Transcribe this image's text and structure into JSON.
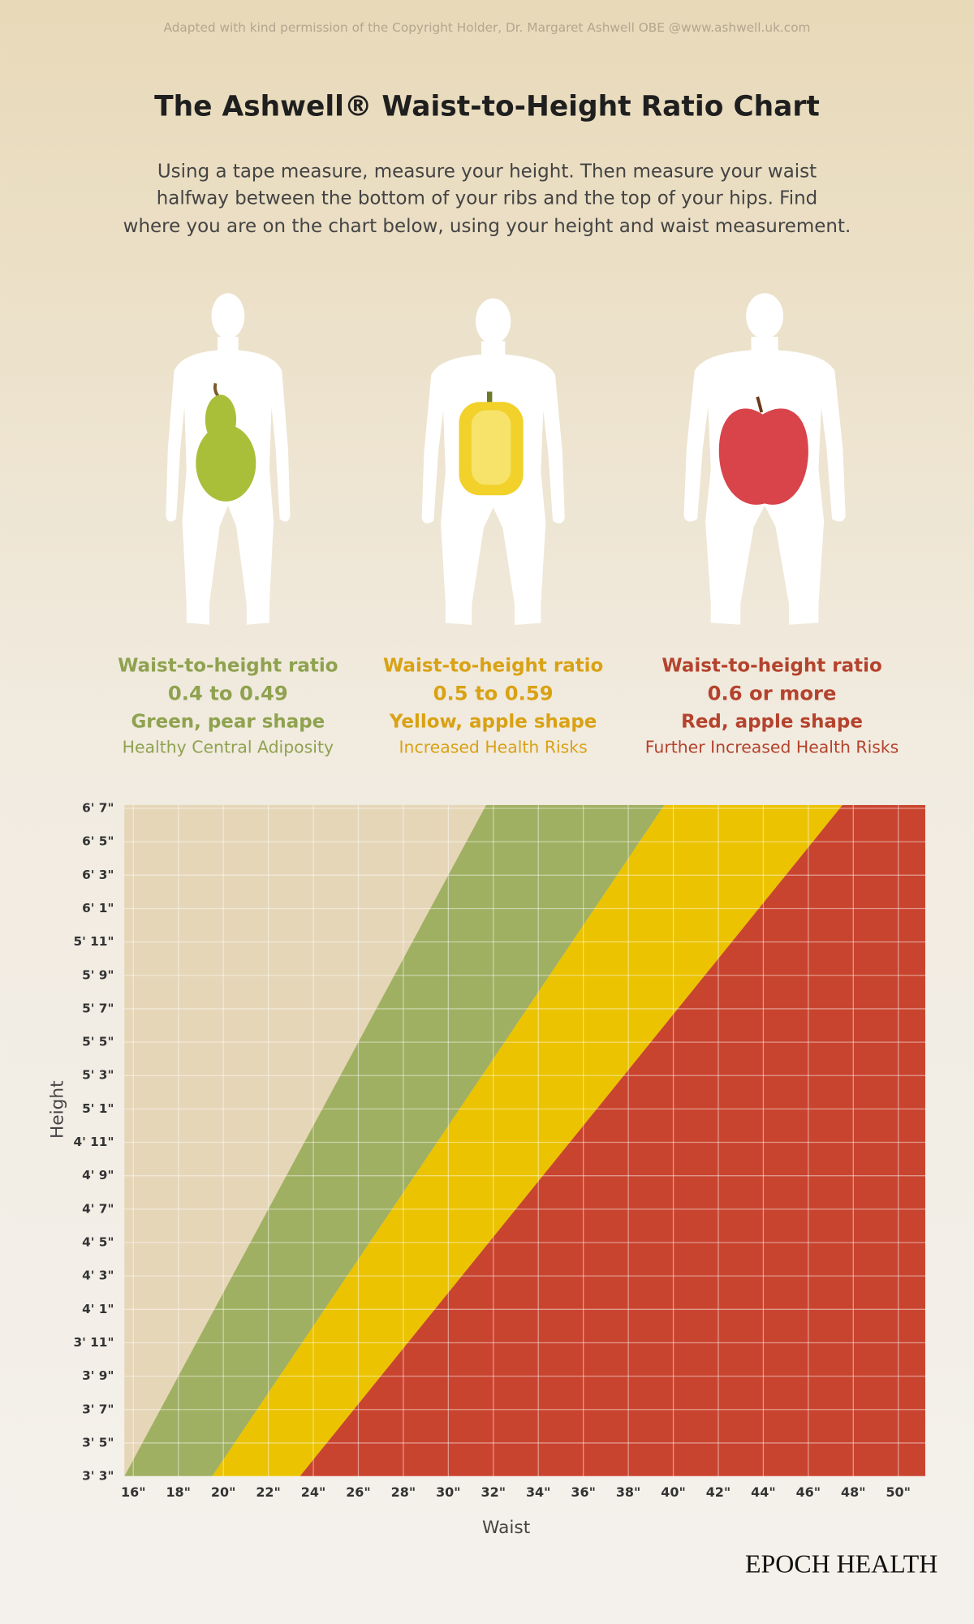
{
  "header": {
    "credit": "Adapted with kind permission of the Copyright Holder, Dr. Margaret Ashwell OBE @www.ashwell.uk.com",
    "title": "The Ashwell® Waist-to-Height Ratio Chart",
    "intro": [
      "Using a tape measure, measure your height. Then measure your waist",
      "halfway between the bottom of your ribs and the top of your hips. Find",
      "where you are on the chart below, using your height and waist measurement."
    ]
  },
  "chart_data": {
    "type": "area",
    "xlabel": "Waist",
    "ylabel": "Height",
    "xlim": [
      15.6,
      51.2
    ],
    "ylim": [
      39,
      79.2
    ],
    "grid": true,
    "xticks": [
      {
        "value": 16,
        "label": "16\""
      },
      {
        "value": 18,
        "label": "18\""
      },
      {
        "value": 20,
        "label": "20\""
      },
      {
        "value": 22,
        "label": "22\""
      },
      {
        "value": 24,
        "label": "24\""
      },
      {
        "value": 26,
        "label": "26\""
      },
      {
        "value": 28,
        "label": "28\""
      },
      {
        "value": 30,
        "label": "30\""
      },
      {
        "value": 32,
        "label": "32\""
      },
      {
        "value": 34,
        "label": "34\""
      },
      {
        "value": 36,
        "label": "36\""
      },
      {
        "value": 38,
        "label": "38\""
      },
      {
        "value": 40,
        "label": "40\""
      },
      {
        "value": 42,
        "label": "42\""
      },
      {
        "value": 44,
        "label": "44\""
      },
      {
        "value": 46,
        "label": "46\""
      },
      {
        "value": 48,
        "label": "48\""
      },
      {
        "value": 50,
        "label": "50\""
      }
    ],
    "yticks": [
      {
        "value": 39,
        "label": "3' 3\""
      },
      {
        "value": 41,
        "label": "3' 5\""
      },
      {
        "value": 43,
        "label": "3' 7\""
      },
      {
        "value": 45,
        "label": "3' 9\""
      },
      {
        "value": 47,
        "label": "3' 11\""
      },
      {
        "value": 49,
        "label": "4' 1\""
      },
      {
        "value": 51,
        "label": "4' 3\""
      },
      {
        "value": 53,
        "label": "4' 5\""
      },
      {
        "value": 55,
        "label": "4' 7\""
      },
      {
        "value": 57,
        "label": "4' 9\""
      },
      {
        "value": 59,
        "label": "4' 11\""
      },
      {
        "value": 61,
        "label": "5' 1\""
      },
      {
        "value": 63,
        "label": "5' 3\""
      },
      {
        "value": 65,
        "label": "5' 5\""
      },
      {
        "value": 67,
        "label": "5' 7\""
      },
      {
        "value": 69,
        "label": "5' 9\""
      },
      {
        "value": 71,
        "label": "5' 11\""
      },
      {
        "value": 73,
        "label": "6' 1\""
      },
      {
        "value": 75,
        "label": "6' 3\""
      },
      {
        "value": 77,
        "label": "6' 5\""
      },
      {
        "value": 79,
        "label": "6' 7\""
      }
    ],
    "zones": [
      {
        "heading": "Waist-to-height ratio",
        "range": "0.4 to 0.49",
        "shape": "Green, pear shape",
        "risk": "Healthy Central Adiposity",
        "min": 0.4,
        "color": "#a0b062",
        "label_color": "#8fa24f"
      },
      {
        "heading": "Waist-to-height ratio",
        "range": "0.5 to 0.59",
        "shape": "Yellow, apple shape",
        "risk": "Increased Health Risks",
        "min": 0.5,
        "color": "#ebc300",
        "label_color": "#d9a214"
      },
      {
        "heading": "Waist-to-height ratio",
        "range": "0.6 or more",
        "shape": "Red, apple shape",
        "risk": "Further Increased Health Risks",
        "min": 0.6,
        "color": "#c9442f",
        "label_color": "#b4432d"
      }
    ]
  },
  "footer": {
    "brand": "EPOCH HEALTH"
  }
}
